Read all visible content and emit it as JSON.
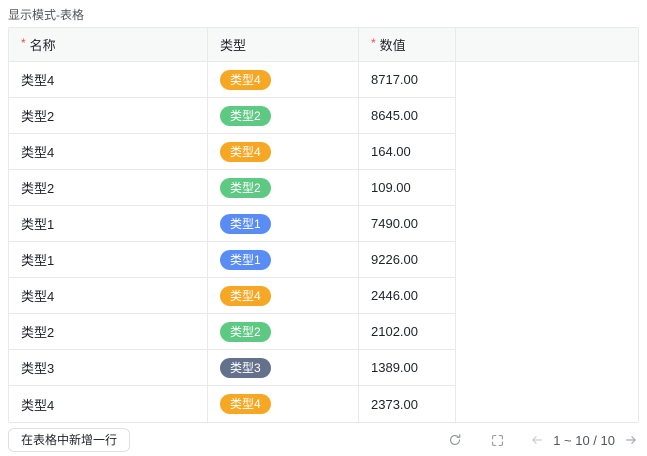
{
  "page": {
    "title": "显示模式-表格"
  },
  "required_marker": "*",
  "table": {
    "columns": [
      {
        "label": "名称",
        "required": true
      },
      {
        "label": "类型",
        "required": false
      },
      {
        "label": "数值",
        "required": true
      }
    ],
    "rows": [
      {
        "name": "类型4",
        "type_tag": "类型4",
        "tag_color": "orange",
        "value": "8717.00"
      },
      {
        "name": "类型2",
        "type_tag": "类型2",
        "tag_color": "green",
        "value": "8645.00"
      },
      {
        "name": "类型4",
        "type_tag": "类型4",
        "tag_color": "orange",
        "value": "164.00"
      },
      {
        "name": "类型2",
        "type_tag": "类型2",
        "tag_color": "green",
        "value": "109.00"
      },
      {
        "name": "类型1",
        "type_tag": "类型1",
        "tag_color": "blue",
        "value": "7490.00"
      },
      {
        "name": "类型1",
        "type_tag": "类型1",
        "tag_color": "blue",
        "value": "9226.00"
      },
      {
        "name": "类型4",
        "type_tag": "类型4",
        "tag_color": "orange",
        "value": "2446.00"
      },
      {
        "name": "类型2",
        "type_tag": "类型2",
        "tag_color": "green",
        "value": "2102.00"
      },
      {
        "name": "类型3",
        "type_tag": "类型3",
        "tag_color": "slate",
        "value": "1389.00"
      },
      {
        "name": "类型4",
        "type_tag": "类型4",
        "tag_color": "orange",
        "value": "2373.00"
      }
    ]
  },
  "tag_colors": {
    "orange": "#f6a723",
    "green": "#5ec983",
    "blue": "#5a8cf6",
    "slate": "#64718c"
  },
  "footer": {
    "add_row_label": "在表格中新增一行",
    "pagination": "1 ~ 10 / 10",
    "icons": {
      "refresh": "refresh-icon",
      "fullscreen": "fullscreen-icon",
      "prev": "arrow-left-icon",
      "next": "arrow-right-icon"
    }
  },
  "colors": {
    "header_background": "#f7f8f8",
    "border": "#e9e9e9",
    "required_red": "#f54a45",
    "text": "#1f2329",
    "muted_text": "#51565d",
    "icon_gray": "#8f959e"
  }
}
